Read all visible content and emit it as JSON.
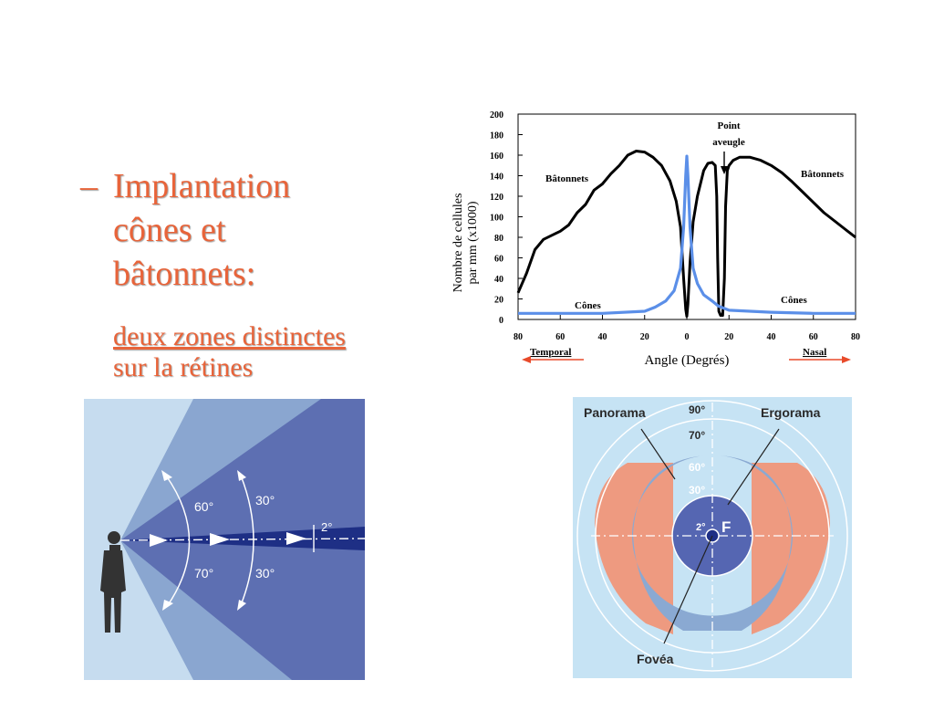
{
  "slide": {
    "dash": "–",
    "heading_lines": [
      "Implantation",
      "cônes et",
      "bâtonnets:"
    ],
    "subtext_lines": [
      "deux zones distinctes",
      "sur la rétines"
    ]
  },
  "chart_data": {
    "type": "line",
    "ylabel_lines": [
      "Nombre de cellules",
      "par mm (x1000)"
    ],
    "xlabel": "Angle (Degrés)",
    "ylim": [
      0,
      200
    ],
    "y_ticks": [
      "0",
      "20",
      "40",
      "60",
      "80",
      "100",
      "120",
      "140",
      "160",
      "180",
      "200"
    ],
    "x_tick_labels": [
      "80",
      "60",
      "40",
      "20",
      "0",
      "20",
      "40",
      "60",
      "80"
    ],
    "xlim": [
      -80,
      80
    ],
    "direction_labels": {
      "left": "Temporal",
      "right": "Nasal"
    },
    "annotations": {
      "blind_spot_lines": [
        "Point",
        "aveugle"
      ],
      "rods_left": "Bâtonnets",
      "rods_right": "Bâtonnets",
      "cones_left": "Cônes",
      "cones_right": "Cônes"
    },
    "colors": {
      "rods": "#000000",
      "cones": "#5b8fe8",
      "arrows": "#e84a2a"
    },
    "series": [
      {
        "key": "rods",
        "x": [
          -80,
          -76,
          -72,
          -68,
          -64,
          -60,
          -56,
          -52,
          -48,
          -44,
          -40,
          -36,
          -32,
          -28,
          -24,
          -20,
          -16,
          -12,
          -8,
          -5,
          -3,
          -1.5,
          -0.5,
          0,
          0.5,
          1.5,
          3,
          5,
          8,
          10,
          12,
          13.5,
          14.2,
          14.6,
          15.2,
          16,
          17,
          17.8,
          18.4,
          19.2,
          20,
          22,
          25,
          30,
          35,
          40,
          45,
          50,
          55,
          60,
          65,
          70,
          75,
          80
        ],
        "values": [
          26,
          45,
          68,
          78,
          82,
          86,
          92,
          104,
          112,
          126,
          132,
          142,
          150,
          160,
          164,
          163,
          158,
          150,
          135,
          115,
          90,
          40,
          10,
          3,
          15,
          55,
          95,
          120,
          145,
          152,
          153,
          150,
          120,
          60,
          8,
          4,
          4,
          40,
          110,
          145,
          150,
          155,
          158,
          158,
          155,
          150,
          143,
          134,
          124,
          114,
          104,
          96,
          88,
          80
        ]
      },
      {
        "key": "cones",
        "x": [
          -80,
          -60,
          -40,
          -20,
          -15,
          -10,
          -6,
          -3,
          -1.5,
          -0.5,
          0,
          0.5,
          1.5,
          3,
          5,
          8,
          12,
          15,
          20,
          30,
          40,
          60,
          80
        ],
        "values": [
          6,
          6,
          6,
          8,
          12,
          18,
          28,
          50,
          90,
          140,
          159,
          140,
          90,
          50,
          35,
          24,
          18,
          13,
          9,
          8,
          7,
          6,
          6
        ]
      }
    ]
  },
  "side_diagram": {
    "angles": [
      "60°",
      "30°",
      "2°",
      "70°",
      "30°"
    ]
  },
  "field_diagram": {
    "labels": {
      "panorama": "Panorama",
      "ergorama": "Ergorama",
      "fovea": "Fovéa",
      "center": "F"
    },
    "ring_angles": [
      "90°",
      "70°",
      "60°",
      "30°",
      "2°"
    ]
  }
}
